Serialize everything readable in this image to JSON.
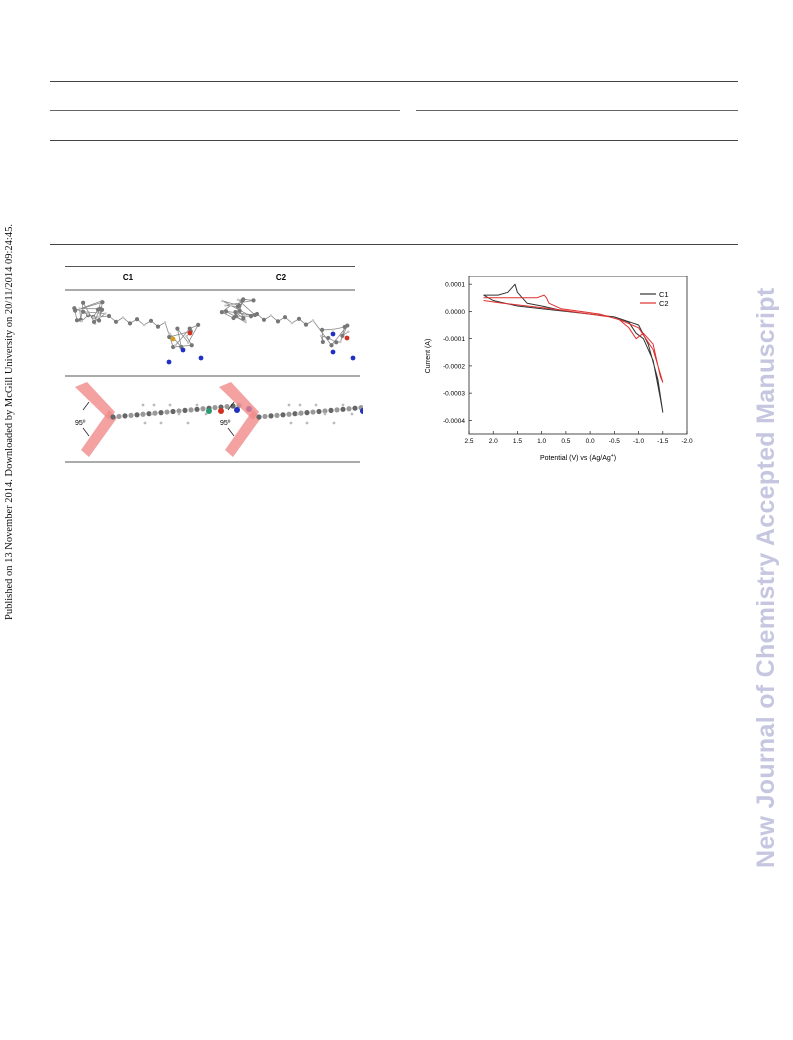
{
  "sidebar_left": {
    "text": "Published on 13 November 2014. Downloaded by McGill University on 20/11/2014 09:24:45."
  },
  "sidebar_right": {
    "text": "New Journal of Chemistry Accepted Manuscript"
  },
  "figure_left": {
    "columns": [
      "C1",
      "C2"
    ],
    "angle_labels": [
      "95º",
      "95º"
    ]
  },
  "chart_data": {
    "type": "line",
    "xlabel": "Potential (V) vs (Ag/Ag",
    "xlabel_sup": "+",
    "xlabel_end": ")",
    "ylabel": "Current (A)",
    "xlim": [
      2.5,
      -2.0
    ],
    "ylim": [
      -0.00045,
      0.00013
    ],
    "x_ticks": [
      "2.5",
      "2.0",
      "1.5",
      "1.0",
      "0.5",
      "0.0",
      "-0.5",
      "-1.0",
      "-1.5",
      "-2.0"
    ],
    "y_ticks": [
      "0.0001",
      "0.0000",
      "-0.0001",
      "-0.0002",
      "-0.0003",
      "-0.0004"
    ],
    "legend_position": "top-right",
    "series": [
      {
        "name": "C1",
        "color": "#333333",
        "x": [
          2.2,
          1.9,
          1.7,
          1.6,
          1.55,
          1.5,
          1.3,
          1.0,
          0.5,
          0.0,
          -0.5,
          -1.0,
          -1.2,
          -1.4,
          -1.5,
          -1.45,
          -1.3,
          -1.1,
          -0.95,
          -0.8,
          -0.5,
          0.0,
          0.5,
          1.0,
          1.5,
          2.0,
          2.2
        ],
        "y": [
          6e-05,
          6e-05,
          7e-05,
          9e-05,
          0.0001,
          7e-05,
          3e-05,
          2e-05,
          0.0,
          -1e-05,
          -2e-05,
          -5e-05,
          -0.00012,
          -0.00025,
          -0.00037,
          -0.00032,
          -0.00018,
          -0.0001,
          -8e-05,
          -4e-05,
          -2e-05,
          -1e-05,
          0.0,
          1e-05,
          2e-05,
          4e-05,
          6e-05
        ]
      },
      {
        "name": "C2",
        "color": "#e03030",
        "x": [
          2.2,
          1.9,
          1.5,
          1.1,
          0.95,
          0.9,
          0.85,
          0.6,
          0.2,
          -0.2,
          -0.6,
          -1.0,
          -1.3,
          -1.5,
          -1.45,
          -1.3,
          -1.1,
          -0.95,
          -0.8,
          -0.6,
          -0.4,
          0.0,
          0.4,
          0.8,
          1.3,
          1.8,
          2.2
        ],
        "y": [
          5e-05,
          5e-05,
          5e-05,
          5e-05,
          6e-05,
          5e-05,
          3e-05,
          1e-05,
          0.0,
          -1e-05,
          -3e-05,
          -6e-05,
          -0.00014,
          -0.00026,
          -0.00024,
          -0.00012,
          -8e-05,
          -0.0001,
          -6e-05,
          -3e-05,
          -2e-05,
          -1e-05,
          0.0,
          1e-05,
          2e-05,
          3e-05,
          4e-05
        ]
      }
    ]
  }
}
